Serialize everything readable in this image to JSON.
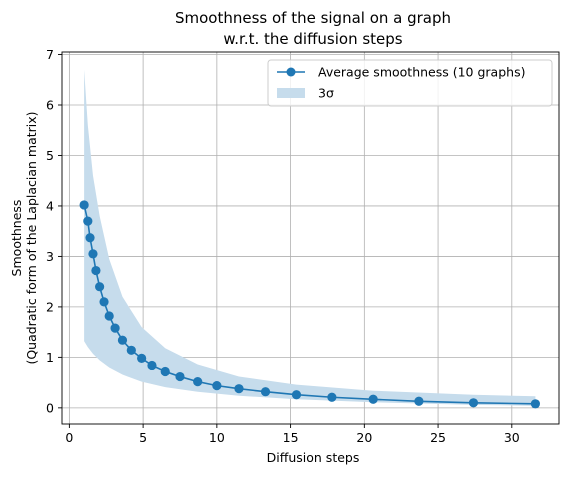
{
  "chart_data": {
    "type": "line",
    "title": "Smoothness of the signal on a graph",
    "subtitle": "w.r.t. the diffusion steps",
    "xlabel": "Diffusion steps",
    "ylabel": "Smoothness",
    "ylabel_line2": "(Quadratic form of the Laplacian matrix)",
    "xlim": [
      -0.5,
      33.2
    ],
    "ylim": [
      -0.32,
      7.05
    ],
    "xticks": [
      0,
      5,
      10,
      15,
      20,
      25,
      30
    ],
    "yticks": [
      0,
      1,
      2,
      3,
      4,
      5,
      6,
      7
    ],
    "grid": true,
    "legend_position": "top-right",
    "colors": {
      "line": "#1f77b4",
      "band": "#c6dcec",
      "grid": "#b0b0b0"
    },
    "series": [
      {
        "name": "Average smoothness (10 graphs)",
        "marker": "circle",
        "x": [
          1.0,
          1.25,
          1.4,
          1.6,
          1.8,
          2.05,
          2.35,
          2.7,
          3.1,
          3.6,
          4.2,
          4.9,
          5.6,
          6.5,
          7.5,
          8.7,
          10.0,
          11.5,
          13.3,
          15.4,
          17.8,
          20.6,
          23.7,
          27.4,
          31.6
        ],
        "y": [
          4.02,
          3.7,
          3.37,
          3.05,
          2.72,
          2.4,
          2.1,
          1.82,
          1.58,
          1.34,
          1.14,
          0.98,
          0.84,
          0.72,
          0.62,
          0.52,
          0.44,
          0.38,
          0.32,
          0.26,
          0.21,
          0.17,
          0.13,
          0.1,
          0.08
        ]
      }
    ],
    "band": {
      "name": "3σ",
      "x": [
        1.0,
        1.25,
        1.6,
        2.05,
        2.7,
        3.6,
        4.9,
        6.5,
        8.7,
        11.5,
        15.4,
        20.6,
        27.4,
        31.6
      ],
      "upper": [
        6.7,
        5.6,
        4.6,
        3.8,
        2.95,
        2.2,
        1.6,
        1.18,
        0.86,
        0.62,
        0.46,
        0.34,
        0.26,
        0.23
      ],
      "lower": [
        1.32,
        1.2,
        1.07,
        0.94,
        0.8,
        0.66,
        0.52,
        0.41,
        0.32,
        0.24,
        0.17,
        0.11,
        0.06,
        0.04
      ]
    }
  }
}
